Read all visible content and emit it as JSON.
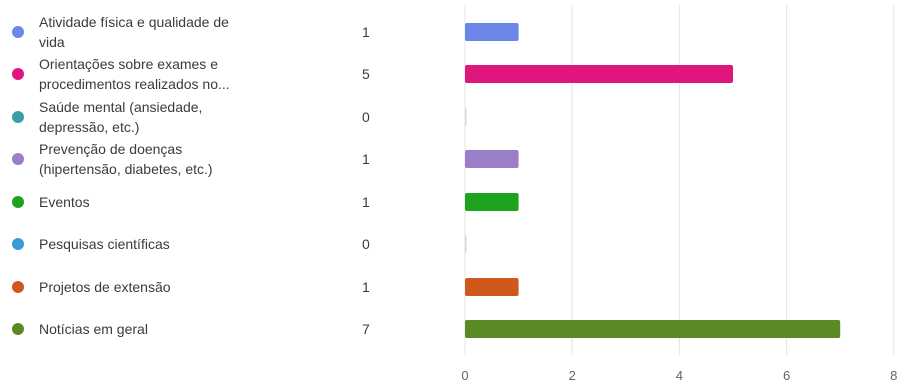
{
  "chart_data": {
    "type": "bar",
    "orientation": "horizontal",
    "categories": [
      "Atividade física e qualidade de vida",
      "Orientações sobre exames e procedimentos realizados no...",
      "Saúde mental (ansiedade, depressão, etc.)",
      "Prevenção de doenças (hipertensão, diabetes, etc.)",
      "Eventos",
      "Pesquisas científicas",
      "Projetos de extensão",
      "Notícias em geral"
    ],
    "values": [
      1,
      5,
      0,
      1,
      1,
      0,
      1,
      7
    ],
    "colors": [
      "#6d87e8",
      "#e0167f",
      "#3a9ea5",
      "#9b7ec8",
      "#1ea31e",
      "#3a9ad9",
      "#d0581c",
      "#5b8a24"
    ],
    "xlim": [
      0,
      8
    ],
    "xticks": [
      "0",
      "2",
      "4",
      "6",
      "8"
    ],
    "grid": true,
    "legend": "left"
  },
  "legend": {
    "items": [
      {
        "label_lines": [
          "Atividade física e qualidade de",
          "vida"
        ],
        "count": "1"
      },
      {
        "label_lines": [
          "Orientações sobre exames e",
          "procedimentos realizados no..."
        ],
        "count": "5"
      },
      {
        "label_lines": [
          "Saúde mental (ansiedade,",
          "depressão, etc.)"
        ],
        "count": "0"
      },
      {
        "label_lines": [
          "Prevenção de doenças",
          "(hipertensão, diabetes, etc.)"
        ],
        "count": "1"
      },
      {
        "label_lines": [
          "Eventos"
        ],
        "count": "1"
      },
      {
        "label_lines": [
          "Pesquisas científicas"
        ],
        "count": "0"
      },
      {
        "label_lines": [
          "Projetos de extensão"
        ],
        "count": "1"
      },
      {
        "label_lines": [
          "Notícias em geral"
        ],
        "count": "7"
      }
    ]
  }
}
